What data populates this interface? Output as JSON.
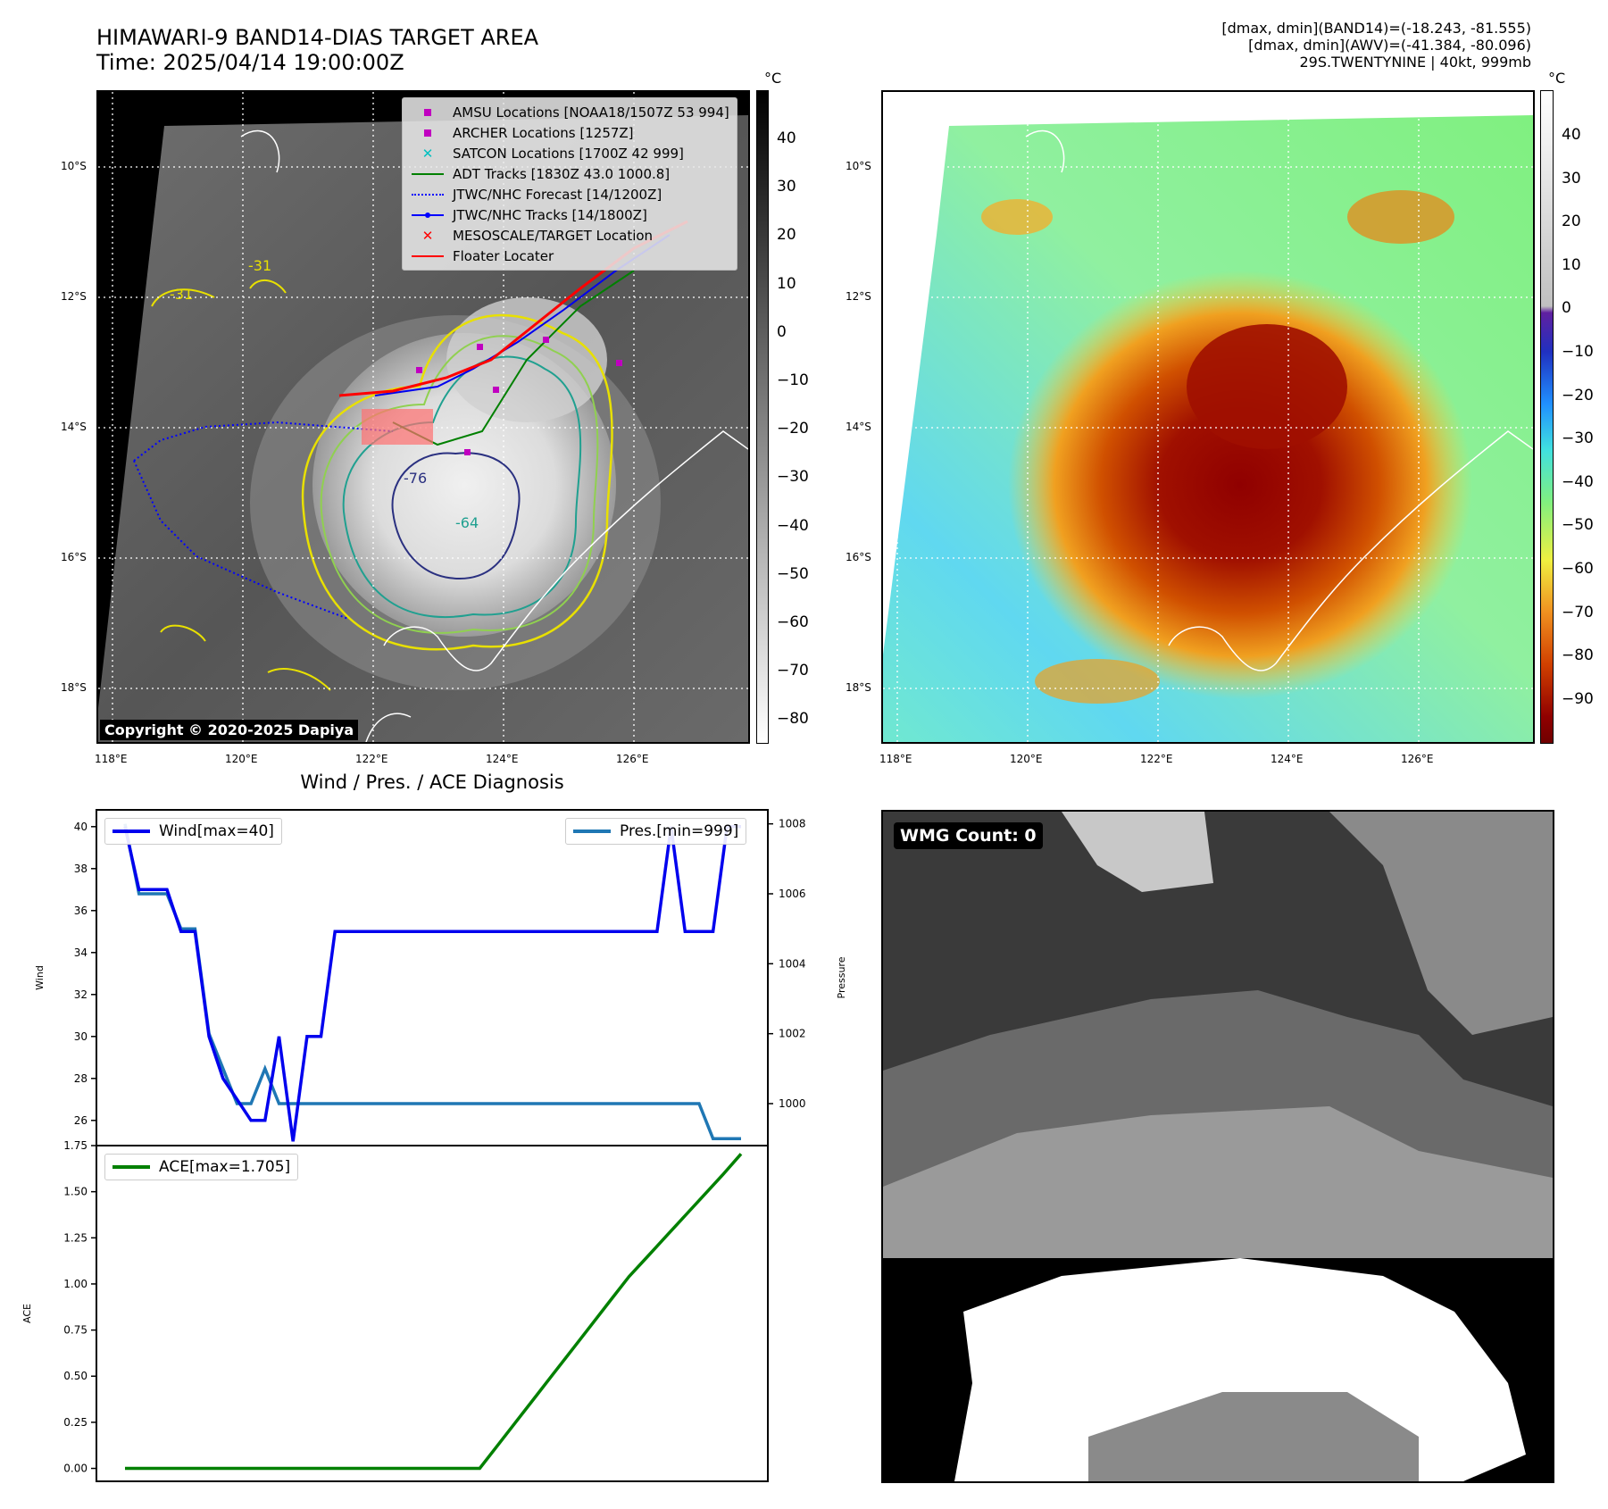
{
  "header": {
    "title_line1": "HIMAWARI-9 BAND14-DIAS TARGET AREA",
    "title_line2": "Time: 2025/04/14 19:00:00Z",
    "info_line1": "[dmax, dmin](BAND14)=(-18.243, -81.555)",
    "info_line2": "[dmax, dmin](AWV)=(-41.384, -80.096)",
    "info_line3": "29S.TWENTYNINE | 40kt, 999mb"
  },
  "map": {
    "lat_labels": [
      "10°S",
      "12°S",
      "14°S",
      "16°S",
      "18°S"
    ],
    "lon_labels": [
      "118°E",
      "120°E",
      "122°E",
      "124°E",
      "126°E"
    ],
    "copyright": "Copyright © 2020-2025 Dapiya",
    "contour_labels": [
      "-31",
      "-31",
      "-76",
      "-64"
    ],
    "legend": [
      {
        "label": "AMSU Locations [NOAA18/1507Z 53 994]",
        "color": "#c000c0",
        "symbol": "square"
      },
      {
        "label": "ARCHER Locations [1257Z]",
        "color": "#c000c0",
        "symbol": "square"
      },
      {
        "label": "SATCON Locations [1700Z 42 999]",
        "color": "#00c0c0",
        "symbol": "x"
      },
      {
        "label": "ADT Tracks [1830Z 43.0 1000.8]",
        "color": "#008000",
        "symbol": "line"
      },
      {
        "label": "JTWC/NHC Forecast [14/1200Z]",
        "color": "#0000ff",
        "symbol": "dotted"
      },
      {
        "label": "JTWC/NHC Tracks [14/1800Z]",
        "color": "#0000ff",
        "symbol": "line-dot"
      },
      {
        "label": "MESOSCALE/TARGET Location",
        "color": "#ff0000",
        "symbol": "x"
      },
      {
        "label": "Floater Locater",
        "color": "#ff0000",
        "symbol": "line"
      }
    ]
  },
  "colorbar_gray": {
    "unit": "°C",
    "ticks": [
      "40",
      "30",
      "20",
      "10",
      "0",
      "−10",
      "−20",
      "−30",
      "−40",
      "−50",
      "−60",
      "−70",
      "−80"
    ]
  },
  "colorbar_color": {
    "unit": "°C",
    "ticks": [
      "40",
      "30",
      "20",
      "10",
      "0",
      "−10",
      "−20",
      "−30",
      "−40",
      "−50",
      "−60",
      "−70",
      "−80",
      "−90"
    ]
  },
  "diag": {
    "title": "Wind / Pres. / ACE Diagnosis",
    "wind_legend": "Wind[max=40]",
    "pres_legend": "Pres.[min=999]",
    "ace_legend": "ACE[max=1.705]",
    "wind_axis_label": "Wind",
    "pres_axis_label": "Pressure",
    "ace_axis_label": "ACE",
    "colors": {
      "wind": "#0000ee",
      "pres": "#1f77b4",
      "ace": "#008000"
    }
  },
  "wmg": {
    "label": "WMG Count: 0"
  },
  "chart_data": [
    {
      "type": "line",
      "title": "Wind / Pres. / ACE Diagnosis",
      "series": [
        {
          "name": "Wind",
          "axis": "left",
          "ylim": [
            24.8,
            40.8
          ],
          "values": [
            40,
            37,
            37,
            37,
            35,
            35,
            30,
            28,
            27,
            26,
            26,
            30,
            25,
            30,
            30,
            35,
            35,
            35,
            35,
            35,
            35,
            35,
            35,
            35,
            35,
            35,
            35,
            35,
            35,
            35,
            35,
            35,
            35,
            35,
            35,
            35,
            35,
            35,
            35,
            40,
            35,
            35,
            35,
            40,
            40
          ],
          "yticks": [
            26,
            28,
            30,
            32,
            34,
            36,
            38,
            40
          ]
        },
        {
          "name": "Pressure",
          "axis": "right",
          "ylim": [
            998.8,
            1008.4
          ],
          "values": [
            1008,
            1006,
            1006,
            1006,
            1005,
            1005,
            1002,
            1001,
            1000,
            1000,
            1001,
            1000,
            1000,
            1000,
            1000,
            1000,
            1000,
            1000,
            1000,
            1000,
            1000,
            1000,
            1000,
            1000,
            1000,
            1000,
            1000,
            1000,
            1000,
            1000,
            1000,
            1000,
            1000,
            1000,
            1000,
            1000,
            1000,
            1000,
            1000,
            1000,
            1000,
            1000,
            999,
            999,
            999
          ],
          "yticks": [
            1000,
            1002,
            1004,
            1006,
            1008
          ]
        }
      ]
    },
    {
      "type": "line",
      "series": [
        {
          "name": "ACE",
          "ylim": [
            -0.07,
            1.75
          ],
          "values": [
            0,
            0,
            0,
            0,
            0,
            0,
            0,
            0,
            0,
            0,
            0,
            0,
            0,
            0,
            0,
            0,
            0,
            0,
            0,
            0,
            0.13,
            0.26,
            0.39,
            0.52,
            0.65,
            0.78,
            0.91,
            1.04,
            1.15,
            1.26,
            1.37,
            1.48,
            1.59,
            1.705
          ],
          "yticks": [
            0.0,
            0.25,
            0.5,
            0.75,
            1.0,
            1.25,
            1.5,
            1.75
          ]
        }
      ]
    }
  ]
}
